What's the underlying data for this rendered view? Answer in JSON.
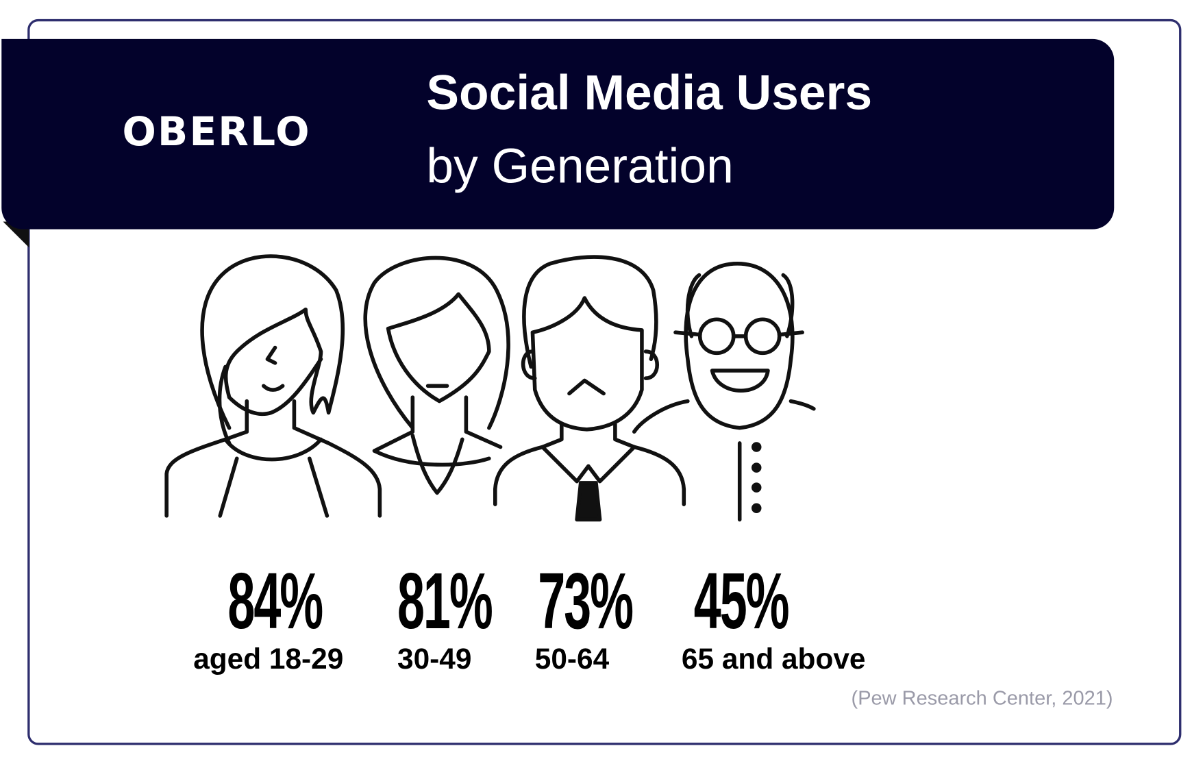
{
  "brand": {
    "logo_text": "OBERLO",
    "color": "#03022b"
  },
  "header": {
    "title_line1": "Social Media Users",
    "title_line2": "by Generation"
  },
  "stats": [
    {
      "percent": "84%",
      "label": "aged 18-29",
      "value": 84
    },
    {
      "percent": "81%",
      "label": "30-49",
      "value": 81
    },
    {
      "percent": "73%",
      "label": "50-64",
      "value": 73
    },
    {
      "percent": "45%",
      "label": "65 and above",
      "value": 45
    }
  ],
  "source": "(Pew Research Center, 2021)",
  "icons": [
    "young-woman-icon",
    "woman-icon",
    "man-with-tie-icon",
    "elderly-man-glasses-icon"
  ]
}
